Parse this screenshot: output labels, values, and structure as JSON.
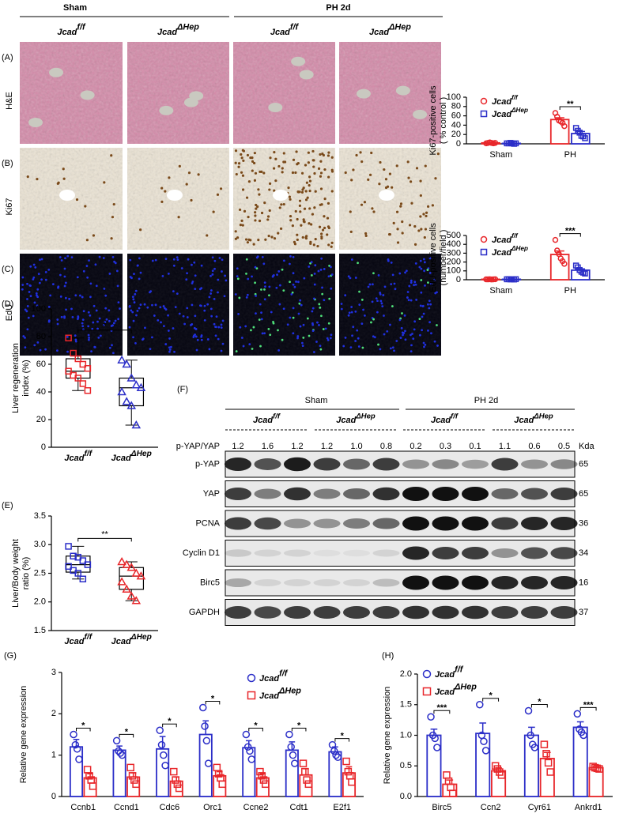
{
  "figure": {
    "header": {
      "sham": "Sham",
      "ph": "PH 2d"
    },
    "columns": [
      {
        "gene": "Jcad",
        "sup": "f/f"
      },
      {
        "gene": "Jcad",
        "sup": "ΔHep"
      },
      {
        "gene": "Jcad",
        "sup": "f/f"
      },
      {
        "gene": "Jcad",
        "sup": "ΔHep"
      }
    ],
    "rows": [
      {
        "label": "(A)",
        "stain": "H&E"
      },
      {
        "label": "(B)",
        "stain": "Ki67"
      },
      {
        "label": "(C)",
        "stain": "EdU"
      }
    ],
    "panel_labels": {
      "D": "(D)",
      "E": "(E)",
      "F": "(F)",
      "G": "(G)",
      "H": "(H)"
    }
  },
  "blot": {
    "header": [
      "Sham",
      "PH 2d"
    ],
    "columns": [
      {
        "gene": "Jcad",
        "sup": "f/f"
      },
      {
        "gene": "Jcad",
        "sup": "ΔHep"
      },
      {
        "gene": "Jcad",
        "sup": "f/f"
      },
      {
        "gene": "Jcad",
        "sup": "ΔHep"
      }
    ],
    "ratio_label": "p-YAP/YAP",
    "ratios": [
      "1.2",
      "1.6",
      "1.2",
      "1.2",
      "1.0",
      "0.8",
      "0.2",
      "0.3",
      "0.1",
      "1.1",
      "0.6",
      "0.5"
    ],
    "unit": "Kda",
    "rows": [
      {
        "label": "p-YAP",
        "kda": "65"
      },
      {
        "label": "YAP",
        "kda": "65"
      },
      {
        "label": "PCNA",
        "kda": "36"
      },
      {
        "label": "Cyclin D1",
        "kda": "34"
      },
      {
        "label": "Birc5",
        "kda": "16"
      },
      {
        "label": "GAPDH",
        "kda": "37"
      }
    ]
  },
  "chart_data": [
    {
      "type": "bar",
      "ylabel": [
        "Ki67-positive cells",
        "( % control )"
      ],
      "categories": [
        "Sham",
        "PH"
      ],
      "series": [
        {
          "name": "Jcad",
          "name_sup": "f/f",
          "color": "#e8262a",
          "marker": "circle",
          "values": [
            2,
            52
          ],
          "errors": [
            0.5,
            4
          ],
          "points": [
            [
              1,
              2,
              3,
              2,
              1,
              2
            ],
            [
              66,
              58,
              50,
              48,
              45,
              38
            ]
          ]
        },
        {
          "name": "Jcad",
          "name_sup": "ΔHep",
          "color": "#2b2ec8",
          "marker": "square",
          "values": [
            1,
            22
          ],
          "errors": [
            0.3,
            4.5
          ],
          "points": [
            [
              1,
              1,
              2,
              1,
              0,
              1
            ],
            [
              34,
              28,
              24,
              17,
              16,
              12
            ]
          ]
        }
      ],
      "significance": [
        null,
        "**"
      ],
      "ylim": [
        0,
        100
      ],
      "yticks": [
        0,
        20,
        40,
        60,
        80,
        100
      ],
      "legend": "upper left"
    },
    {
      "type": "bar",
      "ylabel": [
        "EdU-positive cells",
        "(number/field )"
      ],
      "categories": [
        "Sham",
        "PH"
      ],
      "series": [
        {
          "name": "Jcad",
          "name_sup": "f/f",
          "color": "#e8262a",
          "marker": "circle",
          "values": [
            5,
            285
          ],
          "errors": [
            1,
            40
          ],
          "points": [
            [
              5,
              4,
              6,
              3,
              5,
              6
            ],
            [
              450,
              330,
              290,
              240,
              210,
              180
            ]
          ]
        },
        {
          "name": "Jcad",
          "name_sup": "ΔHep",
          "color": "#2b2ec8",
          "marker": "square",
          "values": [
            5,
            108
          ],
          "errors": [
            1,
            15
          ],
          "points": [
            [
              5,
              6,
              4,
              5,
              3,
              6
            ],
            [
              160,
              140,
              110,
              90,
              80,
              70
            ]
          ]
        }
      ],
      "significance": [
        null,
        "***"
      ],
      "ylim": [
        0,
        500
      ],
      "yticks": [
        0,
        100,
        200,
        300,
        400,
        500
      ],
      "legend": "upper left"
    },
    {
      "type": "box",
      "ylabel": [
        "Liver regeneration",
        "index (%)"
      ],
      "categories": [
        {
          "gene": "Jcad",
          "sup": "f/f"
        },
        {
          "gene": "Jcad",
          "sup": "ΔHep"
        }
      ],
      "colors": [
        "#e8262a",
        "#2b2ec8"
      ],
      "boxes": [
        {
          "min": 41,
          "q1": 50,
          "median": 55,
          "q3": 64,
          "max": 79
        },
        {
          "min": 16,
          "q1": 30,
          "median": 43,
          "q3": 50,
          "max": 63
        }
      ],
      "points": [
        [
          79,
          68,
          64,
          60,
          57,
          55,
          52,
          50,
          46,
          41
        ],
        [
          63,
          60,
          50,
          45,
          43,
          40,
          33,
          30,
          16
        ]
      ],
      "significance": "*",
      "ylim": [
        0,
        100
      ],
      "yticks": [
        0,
        20,
        40,
        60,
        80,
        100
      ]
    },
    {
      "type": "box",
      "ylabel": [
        "Liver/Body weight",
        "ratio (%)"
      ],
      "categories": [
        {
          "gene": "Jcad",
          "sup": "f/f"
        },
        {
          "gene": "Jcad",
          "sup": "ΔHep"
        }
      ],
      "colors": [
        "#2b2ec8",
        "#e8262a"
      ],
      "boxes": [
        {
          "min": 2.4,
          "q1": 2.52,
          "median": 2.65,
          "q3": 2.8,
          "max": 2.97
        },
        {
          "min": 2.02,
          "q1": 2.22,
          "median": 2.45,
          "q3": 2.6,
          "max": 2.7
        }
      ],
      "points": [
        [
          2.97,
          2.8,
          2.78,
          2.72,
          2.65,
          2.62,
          2.55,
          2.5,
          2.4
        ],
        [
          2.7,
          2.65,
          2.6,
          2.5,
          2.45,
          2.35,
          2.22,
          2.1,
          2.02
        ]
      ],
      "significance": "**",
      "ylim": [
        1.5,
        3.5
      ],
      "yticks": [
        1.5,
        {
          "value": 2,
          "label": "2.0"
        },
        2.5,
        {
          "value": 3,
          "label": "3.0"
        },
        3.5
      ]
    },
    {
      "type": "bar",
      "ylabel": [
        "Relative gene expression"
      ],
      "categories": [
        "Ccnb1",
        "Ccnd1",
        "Cdc6",
        "Orc1",
        "Ccne2",
        "Cdt1",
        "E2f1"
      ],
      "series": [
        {
          "name": "Jcad",
          "name_sup": "f/f",
          "color": "#2b2ec8",
          "marker": "circle",
          "values": [
            1.2,
            1.12,
            1.15,
            1.5,
            1.18,
            1.12,
            1.08
          ],
          "errors": [
            0.18,
            0.1,
            0.3,
            0.33,
            0.17,
            0.2,
            0.12
          ],
          "points": [
            [
              1.5,
              1.25,
              1.15,
              0.9
            ],
            [
              1.35,
              1.1,
              1.05,
              1.0
            ],
            [
              1.6,
              1.25,
              1.0,
              0.75
            ],
            [
              2.15,
              1.7,
              1.35,
              0.8
            ],
            [
              1.5,
              1.2,
              1.1,
              0.9
            ],
            [
              1.5,
              1.2,
              1.0,
              0.8
            ],
            [
              1.25,
              1.1,
              1.0,
              0.95
            ]
          ]
        },
        {
          "name": "Jcad",
          "name_sup": "ΔHep",
          "color": "#e8262a",
          "marker": "square",
          "values": [
            0.45,
            0.47,
            0.37,
            0.5,
            0.45,
            0.52,
            0.57
          ],
          "errors": [
            0.1,
            0.1,
            0.1,
            0.1,
            0.1,
            0.15,
            0.15
          ],
          "points": [
            [
              0.65,
              0.5,
              0.4,
              0.25
            ],
            [
              0.7,
              0.5,
              0.4,
              0.3
            ],
            [
              0.6,
              0.4,
              0.3,
              0.2
            ],
            [
              0.7,
              0.55,
              0.45,
              0.3
            ],
            [
              0.6,
              0.5,
              0.4,
              0.3
            ],
            [
              0.8,
              0.6,
              0.4,
              0.3
            ],
            [
              0.85,
              0.6,
              0.5,
              0.35
            ]
          ]
        }
      ],
      "significance": [
        "*",
        "*",
        "*",
        "*",
        "*",
        "*",
        "*"
      ],
      "ylim": [
        0,
        3
      ],
      "yticks": [
        0,
        1,
        2,
        3
      ],
      "legend": "upper right"
    },
    {
      "type": "bar",
      "ylabel": [
        "Relative gene expression"
      ],
      "categories": [
        "Birc5",
        "Ccn2",
        "Cyr61",
        "Ankrd1"
      ],
      "series": [
        {
          "name": "Jcad",
          "name_sup": "f/f",
          "color": "#2b2ec8",
          "marker": "circle",
          "values": [
            1.0,
            1.03,
            1.0,
            1.13
          ],
          "errors": [
            0.1,
            0.17,
            0.13,
            0.09
          ],
          "points": [
            [
              1.3,
              1.0,
              0.95,
              0.8
            ],
            [
              1.5,
              1.0,
              0.9,
              0.75
            ],
            [
              1.4,
              1.0,
              0.85,
              0.8
            ],
            [
              1.35,
              1.1,
              1.05,
              1.0
            ]
          ]
        },
        {
          "name": "Jcad",
          "name_sup": "ΔHep",
          "color": "#e8262a",
          "marker": "square",
          "values": [
            0.2,
            0.42,
            0.62,
            0.47
          ],
          "errors": [
            0.07,
            0.05,
            0.1,
            0.02
          ],
          "points": [
            [
              0.35,
              0.25,
              0.15,
              0.05
            ],
            [
              0.5,
              0.45,
              0.4,
              0.35
            ],
            [
              0.85,
              0.7,
              0.55,
              0.4
            ],
            [
              0.49,
              0.47,
              0.46,
              0.45
            ]
          ]
        }
      ],
      "significance": [
        "***",
        "*",
        "*",
        "***"
      ],
      "ylim": [
        0,
        2
      ],
      "yticks": [
        {
          "value": 0,
          "label": "0.0"
        },
        0.5,
        {
          "value": 1,
          "label": "1.0"
        },
        1.5,
        {
          "value": 2,
          "label": "2.0"
        }
      ],
      "legend": "upper left"
    }
  ]
}
